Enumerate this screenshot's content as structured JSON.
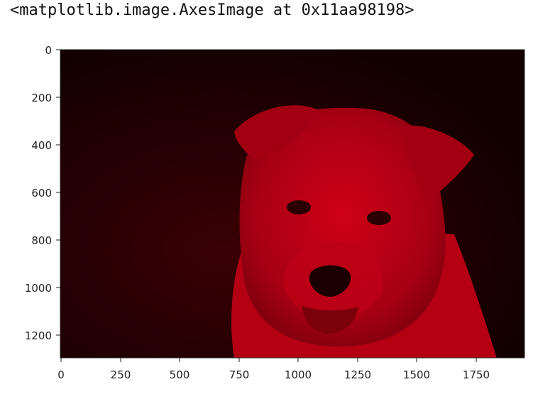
{
  "output": {
    "repr_text": "<matplotlib.image.AxesImage at 0x11aa98198>"
  },
  "image": {
    "subject": "puppy",
    "tint": "red channel"
  },
  "axes": {
    "y_ticks": [
      "0",
      "200",
      "400",
      "600",
      "800",
      "1000",
      "1200"
    ],
    "x_ticks": [
      "0",
      "250",
      "500",
      "750",
      "1000",
      "1250",
      "1500",
      "1750"
    ]
  },
  "colors": {
    "image_dark": "#140000",
    "image_mid": "#7a000c",
    "image_bright": "#c40015",
    "nose": "#1a0000",
    "axis": "#222222"
  }
}
